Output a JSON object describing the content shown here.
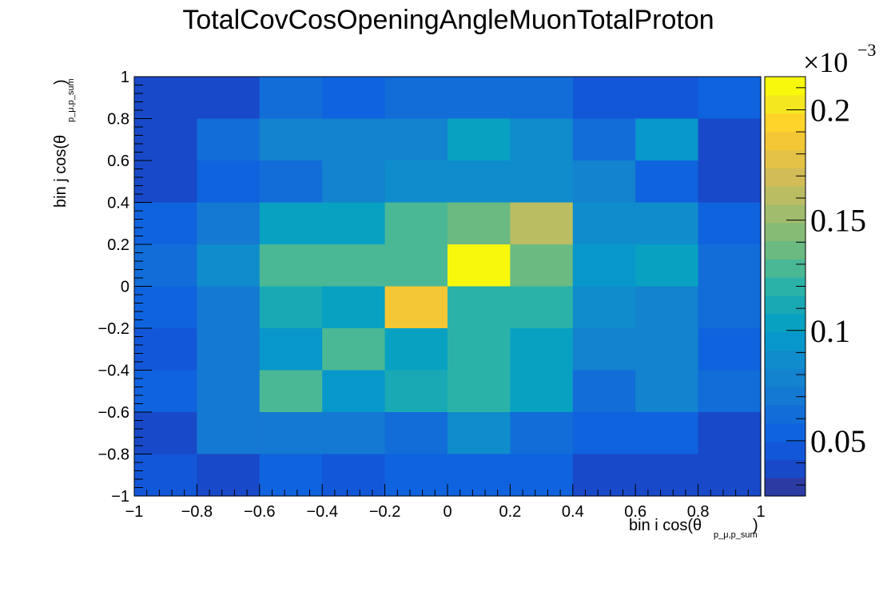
{
  "chart_data": {
    "type": "heatmap",
    "title": "TotalCovCosOpeningAngleMuonTotalProton",
    "xlabel": "bin i cos(θ",
    "xlabel_sub": "p_μ,p_sum",
    "xlabel_close": ")",
    "ylabel": "bin j cos(θ",
    "ylabel_sub": "p_μ,p_sum",
    "ylabel_close": ")",
    "x_edges": [
      -1,
      -0.8,
      -0.6,
      -0.4,
      -0.2,
      0,
      0.2,
      0.4,
      0.6,
      0.8,
      1
    ],
    "y_edges": [
      -1,
      -0.8,
      -0.6,
      -0.4,
      -0.2,
      0,
      0.2,
      0.4,
      0.6,
      0.8,
      1
    ],
    "xlim": [
      -1,
      1
    ],
    "ylim": [
      -1,
      1
    ],
    "x_tick_labels": [
      "−1",
      "−0.8",
      "−0.6",
      "−0.4",
      "−0.2",
      "0",
      "0.2",
      "0.4",
      "0.6",
      "0.8",
      "1"
    ],
    "y_tick_labels": [
      "−1",
      "−0.8",
      "−0.6",
      "−0.4",
      "−0.2",
      "0",
      "0.2",
      "0.4",
      "0.6",
      "0.8",
      "1"
    ],
    "values_note_rows_top_to_bottom": true,
    "values": [
      [
        0.035,
        0.035,
        0.06,
        0.055,
        0.06,
        0.065,
        0.06,
        0.045,
        0.045,
        0.055
      ],
      [
        0.035,
        0.06,
        0.075,
        0.075,
        0.075,
        0.105,
        0.085,
        0.06,
        0.095,
        0.04
      ],
      [
        0.035,
        0.05,
        0.065,
        0.075,
        0.085,
        0.09,
        0.085,
        0.075,
        0.055,
        0.04
      ],
      [
        0.05,
        0.07,
        0.105,
        0.105,
        0.125,
        0.14,
        0.165,
        0.085,
        0.085,
        0.055
      ],
      [
        0.06,
        0.09,
        0.125,
        0.125,
        0.125,
        0.21,
        0.14,
        0.095,
        0.105,
        0.065
      ],
      [
        0.05,
        0.07,
        0.115,
        0.1,
        0.19,
        0.12,
        0.12,
        0.085,
        0.075,
        0.06
      ],
      [
        0.045,
        0.07,
        0.095,
        0.13,
        0.1,
        0.12,
        0.105,
        0.075,
        0.075,
        0.05
      ],
      [
        0.05,
        0.07,
        0.13,
        0.095,
        0.11,
        0.12,
        0.105,
        0.065,
        0.075,
        0.06
      ],
      [
        0.035,
        0.07,
        0.07,
        0.07,
        0.065,
        0.085,
        0.065,
        0.05,
        0.055,
        0.035
      ],
      [
        0.045,
        0.035,
        0.05,
        0.045,
        0.05,
        0.055,
        0.05,
        0.035,
        0.035,
        0.035
      ]
    ],
    "z_multiplier_label": "×10",
    "z_multiplier_exp": "−3",
    "zlim": [
      0.025,
      0.215
    ],
    "z_tick_values": [
      0.05,
      0.1,
      0.15,
      0.2
    ],
    "z_tick_labels": [
      "0.05",
      "0.1",
      "0.15",
      "0.2"
    ],
    "palette": [
      "#2b3ba3",
      "#1849c8",
      "#1357d9",
      "#0f63de",
      "#126dd8",
      "#1479d2",
      "#1382cf",
      "#0f8ccc",
      "#0897ca",
      "#08a1c2",
      "#18a9b5",
      "#2bb2a8",
      "#4bb895",
      "#6aba82",
      "#86bb76",
      "#a1bc6c",
      "#bbbd63",
      "#d2bc57",
      "#e3c245",
      "#f3c635",
      "#fed42b",
      "#f4e71f",
      "#f8f80d"
    ],
    "grid": false,
    "legend": "colorbar-right"
  }
}
